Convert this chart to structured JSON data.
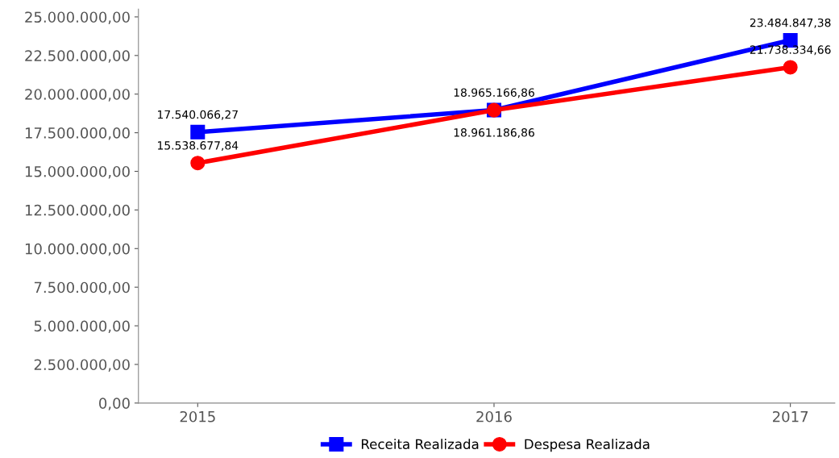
{
  "chart_data": {
    "type": "line",
    "categories": [
      "2015",
      "2016",
      "2017"
    ],
    "series": [
      {
        "name": "Receita Realizada",
        "color": "#0000ff",
        "marker": "square",
        "values": [
          17540066.27,
          18965166.86,
          23484847.38
        ],
        "value_labels": [
          "17.540.066,27",
          "18.965.166,86",
          "23.484.847,38"
        ]
      },
      {
        "name": "Despesa Realizada",
        "color": "#ff0000",
        "marker": "circle",
        "values": [
          15538677.84,
          18961186.86,
          21738334.66
        ],
        "value_labels": [
          "15.538.677,84",
          "18.961.186,86",
          "21.738.334,66"
        ]
      }
    ],
    "ylim": [
      0,
      25500000
    ],
    "yticks": [
      {
        "value": 0,
        "label": "0,00"
      },
      {
        "value": 2500000,
        "label": "2.500.000,00"
      },
      {
        "value": 5000000,
        "label": "5.000.000,00"
      },
      {
        "value": 7500000,
        "label": "7.500.000,00"
      },
      {
        "value": 10000000,
        "label": "10.000.000,00"
      },
      {
        "value": 12500000,
        "label": "12.500.000,00"
      },
      {
        "value": 15000000,
        "label": "15.000.000,00"
      },
      {
        "value": 17500000,
        "label": "17.500.000,00"
      },
      {
        "value": 20000000,
        "label": "20.000.000,00"
      },
      {
        "value": 22500000,
        "label": "22.500.000,00"
      },
      {
        "value": 25000000,
        "label": "25.000.000,00"
      }
    ],
    "grid": false,
    "legend": "bottom",
    "line_style": "solid"
  }
}
